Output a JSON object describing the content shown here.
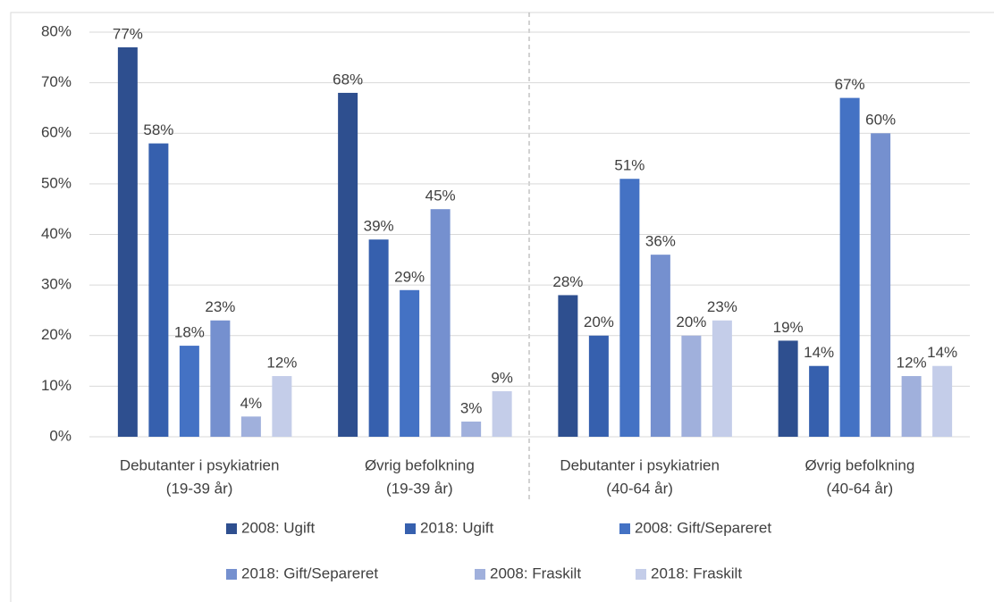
{
  "chart_data": {
    "type": "bar",
    "categories": [
      [
        "Debutanter i psykiatrien",
        "(19-39 år)"
      ],
      [
        "Øvrig befolkning",
        "(19-39 år)"
      ],
      [
        "Debutanter i psykiatrien",
        "(40-64 år)"
      ],
      [
        "Øvrig befolkning",
        "(40-64 år)"
      ]
    ],
    "series": [
      {
        "name": "2008: Ugift",
        "color": "#2e4f8f",
        "values": [
          77,
          68,
          28,
          19
        ],
        "value_labels": [
          "77%",
          "68%",
          "28%",
          "19%"
        ]
      },
      {
        "name": "2018: Ugift",
        "color": "#3660ae",
        "values": [
          58,
          39,
          20,
          14
        ],
        "value_labels": [
          "58%",
          "39%",
          "20%",
          "14%"
        ]
      },
      {
        "name": "2008: Gift/Separeret",
        "color": "#4472c4",
        "values": [
          18,
          29,
          51,
          67
        ],
        "value_labels": [
          "18%",
          "29%",
          "51%",
          "67%"
        ]
      },
      {
        "name": "2018: Gift/Separeret",
        "color": "#7590cf",
        "values": [
          23,
          45,
          36,
          60
        ],
        "value_labels": [
          "23%",
          "45%",
          "36%",
          "60%"
        ]
      },
      {
        "name": "2008: Fraskilt",
        "color": "#a0b0dc",
        "values": [
          4,
          3,
          20,
          12
        ],
        "value_labels": [
          "4%",
          "3%",
          "20%",
          "12%"
        ]
      },
      {
        "name": "2018: Fraskilt",
        "color": "#c4cde9",
        "values": [
          12,
          9,
          23,
          14
        ],
        "value_labels": [
          "12%",
          "9%",
          "23%",
          "14%"
        ]
      }
    ],
    "ylim": [
      0,
      80
    ],
    "yticks": [
      {
        "value": 0,
        "label": "0%"
      },
      {
        "value": 10,
        "label": "10%"
      },
      {
        "value": 20,
        "label": "20%"
      },
      {
        "value": 30,
        "label": "30%"
      },
      {
        "value": 40,
        "label": "40%"
      },
      {
        "value": 50,
        "label": "50%"
      },
      {
        "value": 60,
        "label": "60%"
      },
      {
        "value": 70,
        "label": "70%"
      },
      {
        "value": 80,
        "label": "80%"
      }
    ],
    "grid": true,
    "legend": "bottom"
  }
}
